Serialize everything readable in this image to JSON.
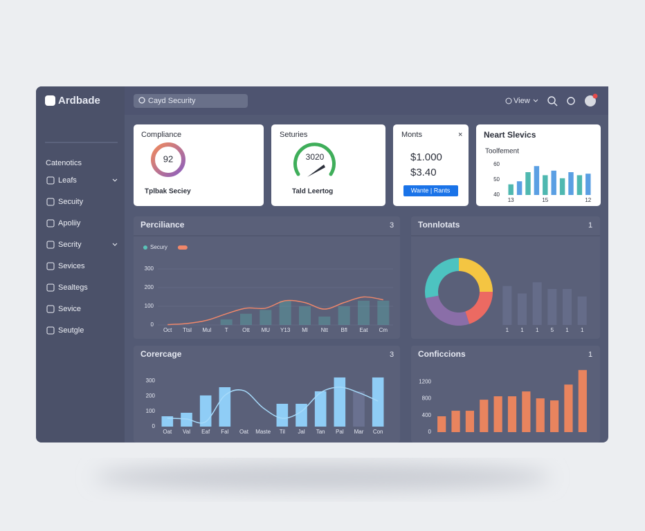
{
  "app": {
    "brand": "Ardbade",
    "search": "Cayd Security",
    "view": "View"
  },
  "sidebar": {
    "heading": "Catenotics",
    "items": [
      "Leafs",
      "Secuity",
      "Apoliiy",
      "Secrity",
      "Sevices",
      "Sealtegs",
      "Sevice",
      "Seutgle"
    ]
  },
  "cards": [
    {
      "title": "Compliance",
      "value": "92",
      "caption": "Tplbak Seciey"
    },
    {
      "title": "Seturies",
      "value": "3020",
      "caption": "Tald Leertog"
    },
    {
      "title": "Monts",
      "close": "×",
      "lines": [
        "$1.000",
        "$3.40"
      ],
      "button": "Wante | Rants"
    }
  ],
  "chart_data": [
    {
      "type": "bar",
      "title": "Neart Slevics",
      "subtitle": "Toolfement",
      "categories": [
        "13",
        null,
        null,
        null,
        "15",
        null,
        null,
        null,
        null,
        "12"
      ],
      "values": [
        47,
        49,
        55,
        59,
        53,
        56,
        51,
        55,
        53,
        54
      ],
      "colors": [
        "#4fb8b0",
        "#5a9fe3",
        "#4fb8b0",
        "#5a9fe3",
        "#4fb8b0",
        "#5a9fe3",
        "#4fb8b0",
        "#5a9fe3",
        "#4fb8b0",
        "#5a9fe3"
      ],
      "ylim": [
        40,
        60
      ],
      "yticks": [
        60,
        50,
        40
      ]
    },
    {
      "type": "combo",
      "title": "Perciliance",
      "menu": "3",
      "legend": true,
      "grid": true,
      "categories": [
        "Oct",
        "Ttsl",
        "Mul",
        "T",
        "Ott",
        "MU",
        "Y13",
        "Ml",
        "Ntt",
        "Bfl",
        "Eat",
        "Cm"
      ],
      "ylim": [
        0,
        300
      ],
      "yticks": [
        0,
        100,
        200,
        300
      ],
      "series": [
        {
          "name": "Secury",
          "type": "bar",
          "color": "#5ac3b8",
          "values": [
            null,
            null,
            null,
            30,
            60,
            80,
            130,
            100,
            45,
            100,
            130,
            130
          ]
        },
        {
          "type": "line",
          "color": "#f0876a",
          "values": [
            2,
            8,
            25,
            60,
            90,
            90,
            130,
            120,
            85,
            120,
            150,
            135
          ]
        }
      ]
    },
    {
      "type": "pie",
      "title": "Tonnlotats",
      "menu": "1",
      "values": [
        25,
        20,
        27,
        28
      ],
      "colors": [
        "#f4c542",
        "#ec6a62",
        "#8a6ea8",
        "#4dc3c0"
      ]
    },
    {
      "type": "bar",
      "categories": [
        "1",
        "1",
        "1",
        "5",
        "1",
        "1"
      ],
      "values": [
        52,
        42,
        57,
        48,
        48,
        38
      ],
      "color": "#656c89",
      "ylim": [
        0,
        60
      ]
    },
    {
      "type": "combo",
      "title": "Corercage",
      "menu": "3",
      "categories": [
        "Oat",
        "Val",
        "Eaf",
        "Fal",
        "Oat",
        "Maste",
        "Til",
        "Jal",
        "Tan",
        "Pal",
        "Mar",
        "Con"
      ],
      "ylim": [
        0,
        350
      ],
      "yticks": [
        0,
        100,
        200,
        300
      ],
      "series": [
        {
          "type": "bar",
          "color": "#8fcdf6",
          "values": [
            68,
            91,
            205,
            259,
            null,
            null,
            150,
            150,
            232,
            323,
            null,
            323
          ]
        },
        {
          "type": "bar",
          "color": "#6a7190",
          "values": [
            null,
            null,
            null,
            null,
            null,
            null,
            null,
            null,
            null,
            null,
            232,
            null
          ]
        },
        {
          "type": "line",
          "color": "#a6dafa",
          "values": [
            55,
            50,
            32,
            205,
            236,
            123,
            55,
            100,
            223,
            259,
            223,
            168
          ]
        }
      ]
    },
    {
      "type": "bar",
      "title": "Conficcions",
      "menu": "1",
      "categories": [
        null,
        null,
        null,
        null,
        null,
        null,
        null,
        null,
        null,
        null,
        null
      ],
      "values": [
        378,
        510,
        510,
        773,
        855,
        855,
        970,
        805,
        756,
        1134,
        1480
      ],
      "color": "#e9845e",
      "ylim": [
        0,
        1500
      ],
      "yticks": [
        0,
        400,
        800,
        1200
      ]
    }
  ]
}
